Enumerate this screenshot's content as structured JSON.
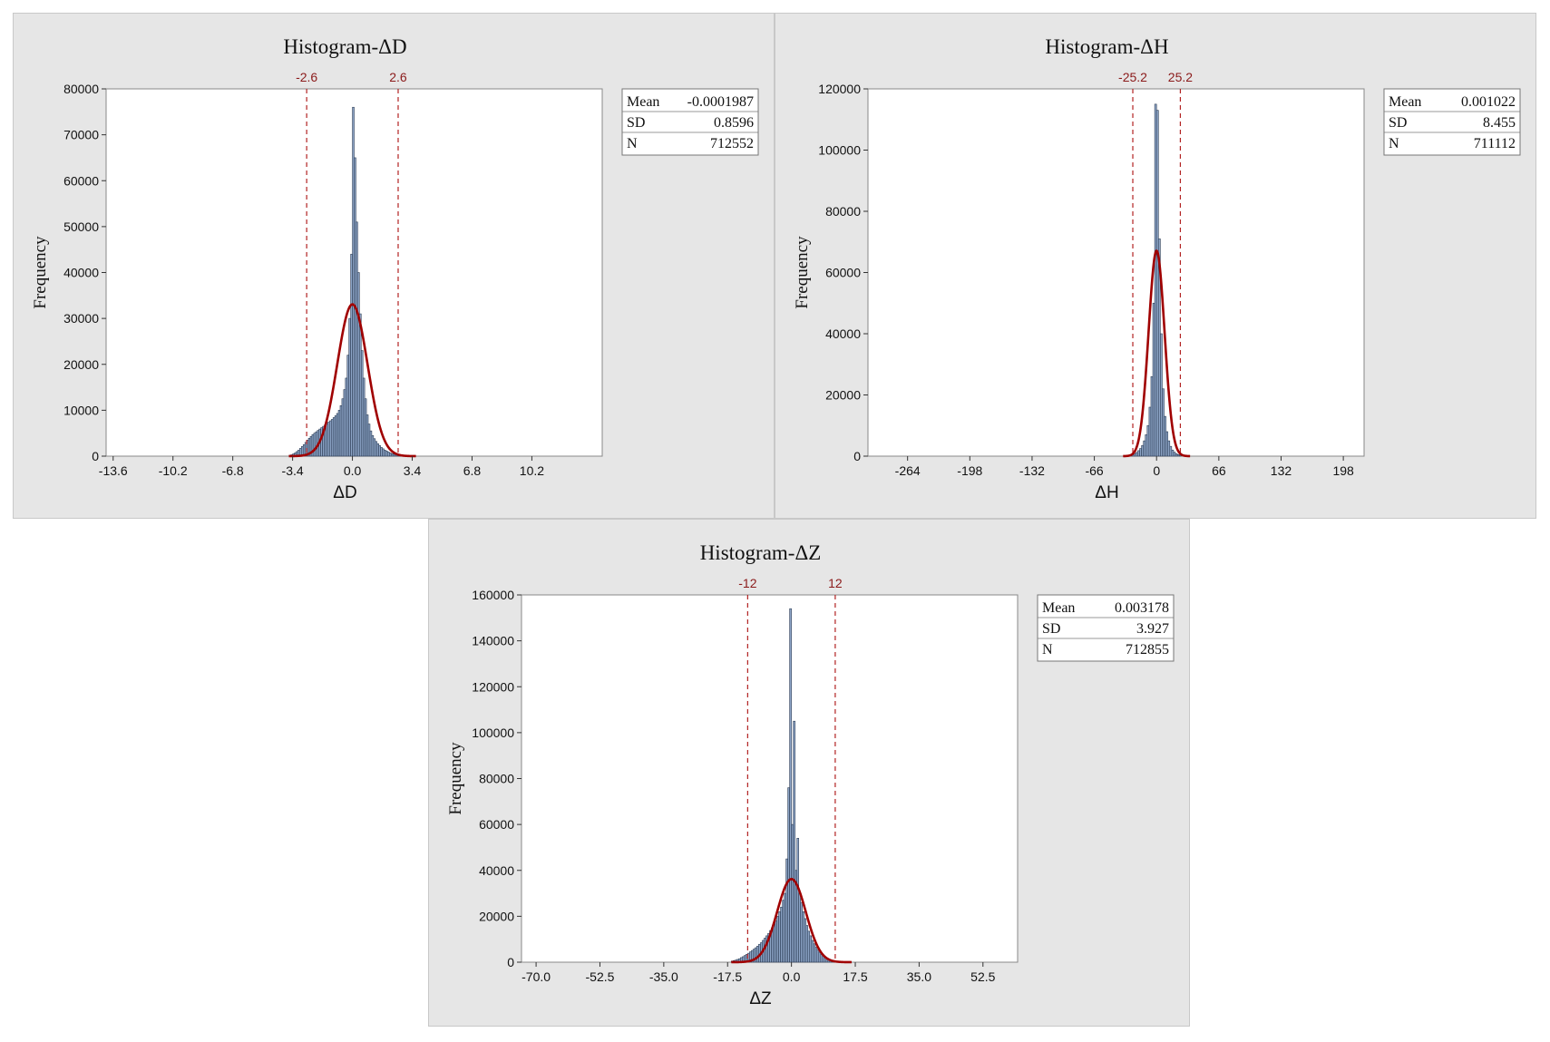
{
  "chart_data": [
    {
      "type": "histogram",
      "title": "Histogram-ΔD",
      "xlabel": "ΔD",
      "ylabel": "Frequency",
      "xlim": [
        -14.0,
        14.2
      ],
      "ylim": [
        0,
        80000
      ],
      "xticks": [
        -13.6,
        -10.2,
        -6.8,
        -3.4,
        0.0,
        3.4,
        6.8,
        10.2
      ],
      "xtick_labels": [
        "-13.6",
        "-10.2",
        "-6.8",
        "-3.4",
        "0.0",
        "3.4",
        "6.8",
        "10.2"
      ],
      "yticks": [
        0,
        10000,
        20000,
        30000,
        40000,
        50000,
        60000,
        70000,
        80000
      ],
      "ref_lines": [
        {
          "value": -2.6,
          "label": "-2.6"
        },
        {
          "value": 2.6,
          "label": "2.6"
        }
      ],
      "stats": [
        {
          "name": "Mean",
          "value": "-0.0001987"
        },
        {
          "name": "SD",
          "value": "0.8596"
        },
        {
          "name": "N",
          "value": "712552"
        }
      ],
      "mean": -0.0001987,
      "sd": 0.8596,
      "n": 712552,
      "bin_width": 0.1,
      "bins": [
        [
          -3.6,
          200
        ],
        [
          -3.5,
          300
        ],
        [
          -3.4,
          500
        ],
        [
          -3.3,
          700
        ],
        [
          -3.2,
          1000
        ],
        [
          -3.1,
          1300
        ],
        [
          -3.0,
          1700
        ],
        [
          -2.9,
          2100
        ],
        [
          -2.8,
          2500
        ],
        [
          -2.7,
          3000
        ],
        [
          -2.6,
          3500
        ],
        [
          -2.5,
          3900
        ],
        [
          -2.4,
          4300
        ],
        [
          -2.3,
          4700
        ],
        [
          -2.2,
          5000
        ],
        [
          -2.1,
          5300
        ],
        [
          -2.0,
          5600
        ],
        [
          -1.9,
          5900
        ],
        [
          -1.8,
          6200
        ],
        [
          -1.7,
          6500
        ],
        [
          -1.6,
          6800
        ],
        [
          -1.5,
          7100
        ],
        [
          -1.4,
          7400
        ],
        [
          -1.3,
          7700
        ],
        [
          -1.2,
          8000
        ],
        [
          -1.1,
          8400
        ],
        [
          -1.0,
          8800
        ],
        [
          -0.9,
          9300
        ],
        [
          -0.8,
          10000
        ],
        [
          -0.7,
          11000
        ],
        [
          -0.6,
          12500
        ],
        [
          -0.5,
          14500
        ],
        [
          -0.4,
          17000
        ],
        [
          -0.3,
          22000
        ],
        [
          -0.2,
          30000
        ],
        [
          -0.1,
          44000
        ],
        [
          0.0,
          76000
        ],
        [
          0.1,
          65000
        ],
        [
          0.2,
          51000
        ],
        [
          0.3,
          40000
        ],
        [
          0.4,
          31000
        ],
        [
          0.5,
          23000
        ],
        [
          0.6,
          17000
        ],
        [
          0.7,
          12500
        ],
        [
          0.8,
          9000
        ],
        [
          0.9,
          7000
        ],
        [
          1.0,
          5500
        ],
        [
          1.1,
          4500
        ],
        [
          1.2,
          3800
        ],
        [
          1.3,
          3200
        ],
        [
          1.4,
          2700
        ],
        [
          1.5,
          2300
        ],
        [
          1.6,
          1900
        ],
        [
          1.7,
          1600
        ],
        [
          1.8,
          1300
        ],
        [
          1.9,
          1100
        ],
        [
          2.0,
          900
        ],
        [
          2.1,
          700
        ],
        [
          2.2,
          550
        ],
        [
          2.3,
          450
        ],
        [
          2.4,
          350
        ],
        [
          2.5,
          300
        ],
        [
          2.6,
          250
        ],
        [
          2.7,
          200
        ],
        [
          2.8,
          150
        ],
        [
          2.9,
          120
        ],
        [
          3.0,
          100
        ]
      ]
    },
    {
      "type": "histogram",
      "title": "Histogram-ΔH",
      "xlabel": "ΔH",
      "ylabel": "Frequency",
      "xlim": [
        -306,
        220
      ],
      "ylim": [
        0,
        120000
      ],
      "xticks": [
        -264,
        -198,
        -132,
        -66,
        0,
        66,
        132,
        198
      ],
      "xtick_labels": [
        "-264",
        "-198",
        "-132",
        "-66",
        "0",
        "66",
        "132",
        "198"
      ],
      "yticks": [
        0,
        20000,
        40000,
        60000,
        80000,
        100000,
        120000
      ],
      "ref_lines": [
        {
          "value": -25.2,
          "label": "-25.2"
        },
        {
          "value": 25.2,
          "label": "25.2"
        }
      ],
      "stats": [
        {
          "name": "Mean",
          "value": "0.001022"
        },
        {
          "name": "SD",
          "value": "8.455"
        },
        {
          "name": "N",
          "value": "711112"
        }
      ],
      "mean": 0.001022,
      "sd": 8.455,
      "n": 711112,
      "bin_width": 2,
      "bins": [
        [
          -28,
          300
        ],
        [
          -26,
          500
        ],
        [
          -24,
          800
        ],
        [
          -22,
          1200
        ],
        [
          -20,
          1800
        ],
        [
          -18,
          2500
        ],
        [
          -16,
          3500
        ],
        [
          -14,
          5000
        ],
        [
          -12,
          7000
        ],
        [
          -10,
          10000
        ],
        [
          -8,
          16000
        ],
        [
          -6,
          26000
        ],
        [
          -4,
          50000
        ],
        [
          -2,
          115000
        ],
        [
          0,
          113000
        ],
        [
          2,
          71000
        ],
        [
          4,
          40000
        ],
        [
          6,
          22000
        ],
        [
          8,
          13000
        ],
        [
          10,
          8000
        ],
        [
          12,
          5000
        ],
        [
          14,
          3200
        ],
        [
          16,
          2000
        ],
        [
          18,
          1300
        ],
        [
          20,
          800
        ],
        [
          22,
          500
        ],
        [
          24,
          300
        ]
      ]
    },
    {
      "type": "histogram",
      "title": "Histogram-ΔZ",
      "xlabel": "ΔZ",
      "ylabel": "Frequency",
      "xlim": [
        -74,
        62
      ],
      "ylim": [
        0,
        160000
      ],
      "xticks": [
        -70.0,
        -52.5,
        -35.0,
        -17.5,
        0.0,
        17.5,
        35.0,
        52.5
      ],
      "xtick_labels": [
        "-70.0",
        "-52.5",
        "-35.0",
        "-17.5",
        "0.0",
        "17.5",
        "35.0",
        "52.5"
      ],
      "yticks": [
        0,
        20000,
        40000,
        60000,
        80000,
        100000,
        120000,
        140000,
        160000
      ],
      "ref_lines": [
        {
          "value": -12,
          "label": "-12"
        },
        {
          "value": 12,
          "label": "12"
        }
      ],
      "stats": [
        {
          "name": "Mean",
          "value": "0.003178"
        },
        {
          "name": "SD",
          "value": "3.927"
        },
        {
          "name": "N",
          "value": "712855"
        }
      ],
      "mean": 0.003178,
      "sd": 3.927,
      "n": 712855,
      "bin_width": 0.5,
      "bins": [
        [
          -16.5,
          500
        ],
        [
          -16.0,
          700
        ],
        [
          -15.5,
          900
        ],
        [
          -15.0,
          1200
        ],
        [
          -14.5,
          1500
        ],
        [
          -14.0,
          2000
        ],
        [
          -13.5,
          2400
        ],
        [
          -13.0,
          2900
        ],
        [
          -12.5,
          3400
        ],
        [
          -12.0,
          3900
        ],
        [
          -11.5,
          4500
        ],
        [
          -11.0,
          5100
        ],
        [
          -10.5,
          5700
        ],
        [
          -10.0,
          6300
        ],
        [
          -9.5,
          7000
        ],
        [
          -9.0,
          7800
        ],
        [
          -8.5,
          8500
        ],
        [
          -8.0,
          9500
        ],
        [
          -7.5,
          10500
        ],
        [
          -7.0,
          11500
        ],
        [
          -6.5,
          12500
        ],
        [
          -6.0,
          13800
        ],
        [
          -5.5,
          15000
        ],
        [
          -5.0,
          16500
        ],
        [
          -4.5,
          18000
        ],
        [
          -4.0,
          20000
        ],
        [
          -3.5,
          22000
        ],
        [
          -3.0,
          24000
        ],
        [
          -2.5,
          27000
        ],
        [
          -2.0,
          30000
        ],
        [
          -1.5,
          45000
        ],
        [
          -1.0,
          76000
        ],
        [
          -0.5,
          154000
        ],
        [
          0.0,
          60000
        ],
        [
          0.5,
          105000
        ],
        [
          1.0,
          40000
        ],
        [
          1.5,
          54000
        ],
        [
          2.0,
          30000
        ],
        [
          2.5,
          26000
        ],
        [
          3.0,
          22000
        ],
        [
          3.5,
          19000
        ],
        [
          4.0,
          16000
        ],
        [
          4.5,
          13500
        ],
        [
          5.0,
          11500
        ],
        [
          5.5,
          9500
        ],
        [
          6.0,
          8000
        ],
        [
          6.5,
          6500
        ],
        [
          7.0,
          5300
        ],
        [
          7.5,
          4300
        ],
        [
          8.0,
          3400
        ],
        [
          8.5,
          2700
        ],
        [
          9.0,
          2100
        ],
        [
          9.5,
          1600
        ],
        [
          10.0,
          1200
        ],
        [
          10.5,
          900
        ],
        [
          11.0,
          700
        ],
        [
          11.5,
          500
        ],
        [
          12.0,
          350
        ],
        [
          12.5,
          250
        ],
        [
          13.0,
          180
        ],
        [
          13.5,
          120
        ]
      ]
    }
  ],
  "colors": {
    "panel_bg": "#e6e6e6",
    "plot_bg": "#ffffff",
    "bar_fill": "#8ea6c8",
    "bar_stroke": "#2a3a52",
    "fit_curve": "#a00000",
    "ref_line": "#b22222",
    "ref_label": "#8b1a1a"
  }
}
